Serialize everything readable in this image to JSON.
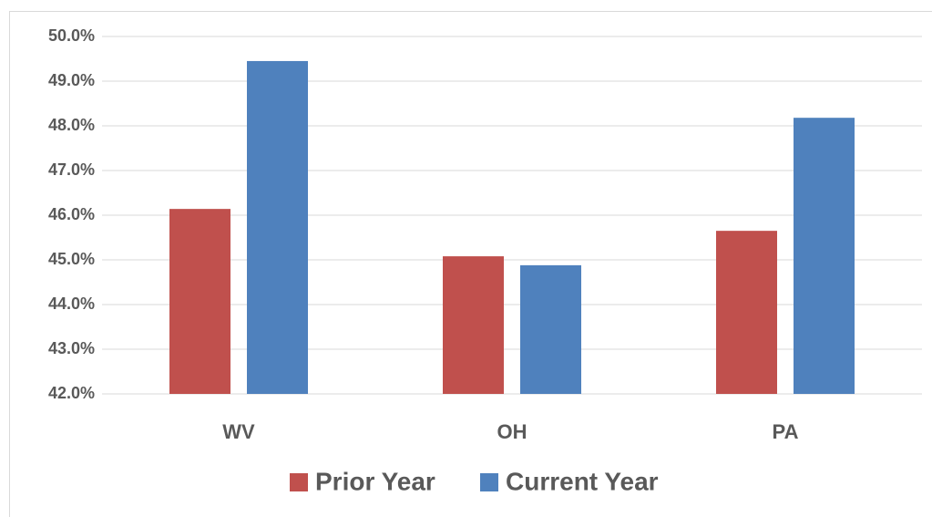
{
  "chart_data": {
    "type": "bar",
    "categories": [
      "WV",
      "OH",
      "PA"
    ],
    "series": [
      {
        "name": "Prior Year",
        "color": "#c0504d",
        "values": [
          46.14,
          45.08,
          45.65
        ]
      },
      {
        "name": "Current Year",
        "color": "#4f81bd",
        "values": [
          49.45,
          44.88,
          48.18
        ]
      }
    ],
    "ylim": [
      42,
      50
    ],
    "yticks": [
      {
        "value": 42,
        "label": "42.0%"
      },
      {
        "value": 43,
        "label": "43.0%"
      },
      {
        "value": 44,
        "label": "44.0%"
      },
      {
        "value": 45,
        "label": "45.0%"
      },
      {
        "value": 46,
        "label": "46.0%"
      },
      {
        "value": 47,
        "label": "47.0%"
      },
      {
        "value": 48,
        "label": "48.0%"
      },
      {
        "value": 49,
        "label": "49.0%"
      },
      {
        "value": 50,
        "label": "50.0%"
      }
    ],
    "grid": true,
    "legend": "bottom"
  }
}
